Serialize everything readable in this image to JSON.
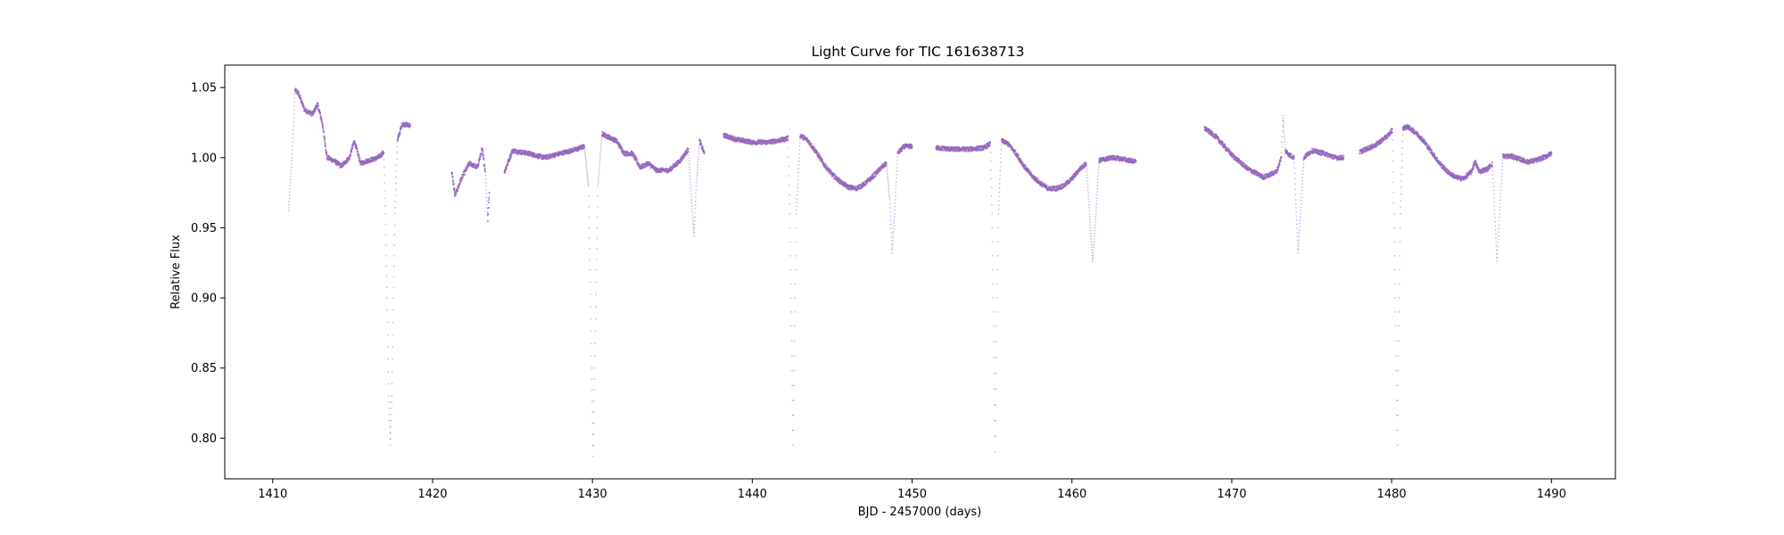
{
  "chart_data": {
    "type": "scatter",
    "title": "Light Curve for TIC 161638713",
    "xlabel": "BJD - 2457000 (days)",
    "ylabel": "Relative Flux",
    "xlim": [
      1407,
      1494
    ],
    "ylim": [
      0.771,
      1.066
    ],
    "x_ticks": [
      1410,
      1420,
      1430,
      1440,
      1450,
      1460,
      1470,
      1480,
      1490
    ],
    "x_tick_labels": [
      "1410",
      "1420",
      "1430",
      "1440",
      "1450",
      "1460",
      "1470",
      "1480",
      "1490"
    ],
    "y_ticks": [
      0.8,
      0.85,
      0.9,
      0.95,
      1.0,
      1.05
    ],
    "y_tick_labels": [
      "0.80",
      "0.85",
      "0.90",
      "0.95",
      "1.00",
      "1.05"
    ],
    "grid": false,
    "legend": false,
    "color": "#9467bd",
    "series": [
      {
        "segments": [
          [
            [
              1411.0,
              0.962
            ],
            [
              1411.2,
              1.0
            ],
            [
              1411.4,
              1.048
            ],
            [
              1411.6,
              1.046
            ],
            [
              1412.0,
              1.034
            ],
            [
              1412.5,
              1.031
            ],
            [
              1412.8,
              1.038
            ],
            [
              1413.1,
              1.025
            ],
            [
              1413.4,
              1.0
            ],
            [
              1413.8,
              0.998
            ],
            [
              1414.3,
              0.994
            ],
            [
              1414.8,
              1.0
            ],
            [
              1415.1,
              1.012
            ],
            [
              1415.5,
              0.996
            ],
            [
              1416.0,
              0.998
            ],
            [
              1416.6,
              1.0
            ],
            [
              1416.95,
              1.004
            ],
            [
              1417.05,
              0.96
            ],
            [
              1417.15,
              0.9
            ],
            [
              1417.25,
              0.83
            ],
            [
              1417.35,
              0.795
            ],
            [
              1417.45,
              0.83
            ],
            [
              1417.55,
              0.9
            ],
            [
              1417.65,
              0.96
            ],
            [
              1417.8,
              1.012
            ],
            [
              1418.1,
              1.024
            ],
            [
              1418.6,
              1.023
            ]
          ],
          [
            [
              1421.2,
              0.99
            ],
            [
              1421.4,
              0.973
            ],
            [
              1421.8,
              0.985
            ],
            [
              1422.3,
              0.996
            ],
            [
              1422.8,
              0.993
            ],
            [
              1423.1,
              1.006
            ],
            [
              1423.3,
              0.99
            ],
            [
              1423.45,
              0.956
            ],
            [
              1423.55,
              0.975
            ]
          ],
          [
            [
              1424.5,
              0.99
            ],
            [
              1425.0,
              1.005
            ],
            [
              1426.0,
              1.003
            ],
            [
              1427.0,
              1.0
            ],
            [
              1428.0,
              1.003
            ],
            [
              1429.0,
              1.006
            ],
            [
              1429.5,
              1.008
            ],
            [
              1429.75,
              0.98
            ],
            [
              1429.85,
              0.92
            ],
            [
              1429.95,
              0.85
            ],
            [
              1430.05,
              0.787
            ],
            [
              1430.15,
              0.85
            ],
            [
              1430.25,
              0.92
            ],
            [
              1430.35,
              0.98
            ],
            [
              1430.6,
              1.017
            ],
            [
              1431.5,
              1.012
            ],
            [
              1432.0,
              1.003
            ],
            [
              1432.5,
              1.003
            ],
            [
              1433.0,
              0.993
            ],
            [
              1433.5,
              0.996
            ],
            [
              1434.0,
              0.991
            ],
            [
              1434.8,
              0.991
            ],
            [
              1435.5,
              0.998
            ],
            [
              1436.0,
              1.006
            ],
            [
              1436.2,
              0.97
            ],
            [
              1436.35,
              0.944
            ],
            [
              1436.5,
              0.98
            ],
            [
              1436.7,
              1.012
            ],
            [
              1437.0,
              1.003
            ]
          ],
          [
            [
              1438.2,
              1.016
            ],
            [
              1439.0,
              1.013
            ],
            [
              1440.0,
              1.011
            ],
            [
              1441.0,
              1.011
            ],
            [
              1442.0,
              1.013
            ],
            [
              1442.25,
              1.014
            ],
            [
              1442.35,
              0.96
            ],
            [
              1442.45,
              0.88
            ],
            [
              1442.55,
              0.795
            ],
            [
              1442.65,
              0.88
            ],
            [
              1442.75,
              0.96
            ],
            [
              1443.0,
              1.016
            ],
            [
              1443.5,
              1.012
            ],
            [
              1444.0,
              1.004
            ],
            [
              1444.5,
              0.995
            ],
            [
              1445.0,
              0.988
            ],
            [
              1445.5,
              0.983
            ],
            [
              1446.0,
              0.979
            ],
            [
              1446.5,
              0.978
            ],
            [
              1447.0,
              0.981
            ],
            [
              1447.5,
              0.986
            ],
            [
              1448.0,
              0.992
            ],
            [
              1448.4,
              0.996
            ],
            [
              1448.6,
              0.97
            ],
            [
              1448.75,
              0.932
            ],
            [
              1448.9,
              0.96
            ],
            [
              1449.1,
              1.003
            ],
            [
              1449.5,
              1.008
            ],
            [
              1450.0,
              1.008
            ]
          ],
          [
            [
              1451.5,
              1.007
            ],
            [
              1452.5,
              1.006
            ],
            [
              1453.5,
              1.006
            ],
            [
              1454.5,
              1.007
            ],
            [
              1454.9,
              1.01
            ],
            [
              1455.0,
              0.96
            ],
            [
              1455.1,
              0.88
            ],
            [
              1455.2,
              0.79
            ],
            [
              1455.3,
              0.88
            ],
            [
              1455.4,
              0.96
            ],
            [
              1455.6,
              1.012
            ],
            [
              1456.0,
              1.01
            ],
            [
              1456.5,
              1.003
            ],
            [
              1457.0,
              0.994
            ],
            [
              1457.5,
              0.987
            ],
            [
              1458.0,
              0.982
            ],
            [
              1458.5,
              0.978
            ],
            [
              1459.0,
              0.978
            ],
            [
              1459.5,
              0.98
            ],
            [
              1460.0,
              0.985
            ],
            [
              1460.5,
              0.992
            ],
            [
              1460.9,
              0.996
            ],
            [
              1461.1,
              0.96
            ],
            [
              1461.3,
              0.926
            ],
            [
              1461.5,
              0.96
            ],
            [
              1461.7,
              0.998
            ],
            [
              1462.5,
              1.0
            ],
            [
              1463.2,
              0.999
            ],
            [
              1464.0,
              0.997
            ]
          ],
          [
            [
              1468.3,
              1.021
            ],
            [
              1469.0,
              1.015
            ],
            [
              1470.0,
              1.002
            ],
            [
              1471.0,
              0.992
            ],
            [
              1472.0,
              0.986
            ],
            [
              1472.8,
              0.99
            ],
            [
              1473.1,
              1.0
            ],
            [
              1473.2,
              1.03
            ],
            [
              1473.35,
              1.005
            ],
            [
              1473.6,
              1.002
            ],
            [
              1473.9,
              1.0
            ],
            [
              1474.0,
              0.97
            ],
            [
              1474.15,
              0.932
            ],
            [
              1474.3,
              0.96
            ],
            [
              1474.5,
              1.0
            ],
            [
              1475.0,
              1.005
            ],
            [
              1475.8,
              1.003
            ],
            [
              1476.5,
              1.0
            ],
            [
              1477.0,
              1.0
            ]
          ],
          [
            [
              1478.0,
              1.004
            ],
            [
              1479.0,
              1.009
            ],
            [
              1479.8,
              1.016
            ],
            [
              1480.05,
              1.02
            ],
            [
              1480.15,
              0.96
            ],
            [
              1480.25,
              0.88
            ],
            [
              1480.35,
              0.795
            ],
            [
              1480.45,
              0.88
            ],
            [
              1480.55,
              0.96
            ],
            [
              1480.7,
              1.021
            ],
            [
              1481.0,
              1.022
            ],
            [
              1481.5,
              1.018
            ],
            [
              1482.0,
              1.012
            ],
            [
              1482.5,
              1.004
            ],
            [
              1483.0,
              0.996
            ],
            [
              1483.5,
              0.99
            ],
            [
              1484.0,
              0.986
            ],
            [
              1484.5,
              0.985
            ],
            [
              1485.0,
              0.99
            ],
            [
              1485.2,
              0.997
            ],
            [
              1485.5,
              0.99
            ],
            [
              1486.0,
              0.992
            ],
            [
              1486.3,
              0.996
            ],
            [
              1486.45,
              0.96
            ],
            [
              1486.6,
              0.926
            ],
            [
              1486.75,
              0.96
            ],
            [
              1486.95,
              1.001
            ],
            [
              1487.5,
              1.001
            ],
            [
              1488.0,
              0.999
            ],
            [
              1488.5,
              0.997
            ],
            [
              1489.0,
              0.998
            ],
            [
              1489.5,
              1.0
            ],
            [
              1490.0,
              1.003
            ]
          ]
        ]
      }
    ]
  }
}
